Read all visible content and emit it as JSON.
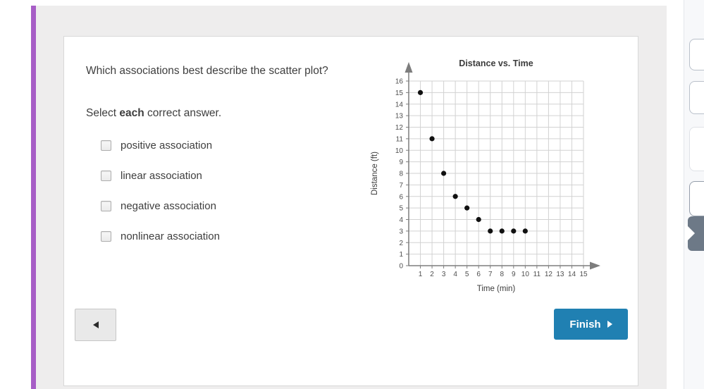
{
  "question": {
    "text": "Which associations best describe the scatter plot?",
    "select_prefix": "Select ",
    "select_bold": "each",
    "select_suffix": " correct answer."
  },
  "options": [
    {
      "label": "positive association",
      "checked": false
    },
    {
      "label": "linear association",
      "checked": false
    },
    {
      "label": "negative association",
      "checked": false
    },
    {
      "label": "nonlinear association",
      "checked": false
    }
  ],
  "nav": {
    "finish_label": "Finish"
  },
  "colors": {
    "accent_purple": "#a75ec6",
    "finish_blue": "#2080b2",
    "content_gray": "#eeeded",
    "active_tab_slate": "#6d7987"
  },
  "chart_data": {
    "type": "scatter",
    "title": "Distance vs. Time",
    "xlabel": "Time (min)",
    "ylabel": "Distance (ft)",
    "x": [
      1,
      2,
      3,
      4,
      5,
      6,
      7,
      8,
      9,
      10
    ],
    "y": [
      15,
      11,
      8,
      6,
      5,
      4,
      3,
      3,
      3,
      3
    ],
    "xlim": [
      0,
      15
    ],
    "ylim": [
      0,
      16
    ],
    "xtick_step": 1,
    "ytick_step": 1,
    "grid": true,
    "legend": "none",
    "grid_color": "#d2d2d2",
    "axis_color": "#7d7d7d",
    "point_color": "#111111"
  }
}
